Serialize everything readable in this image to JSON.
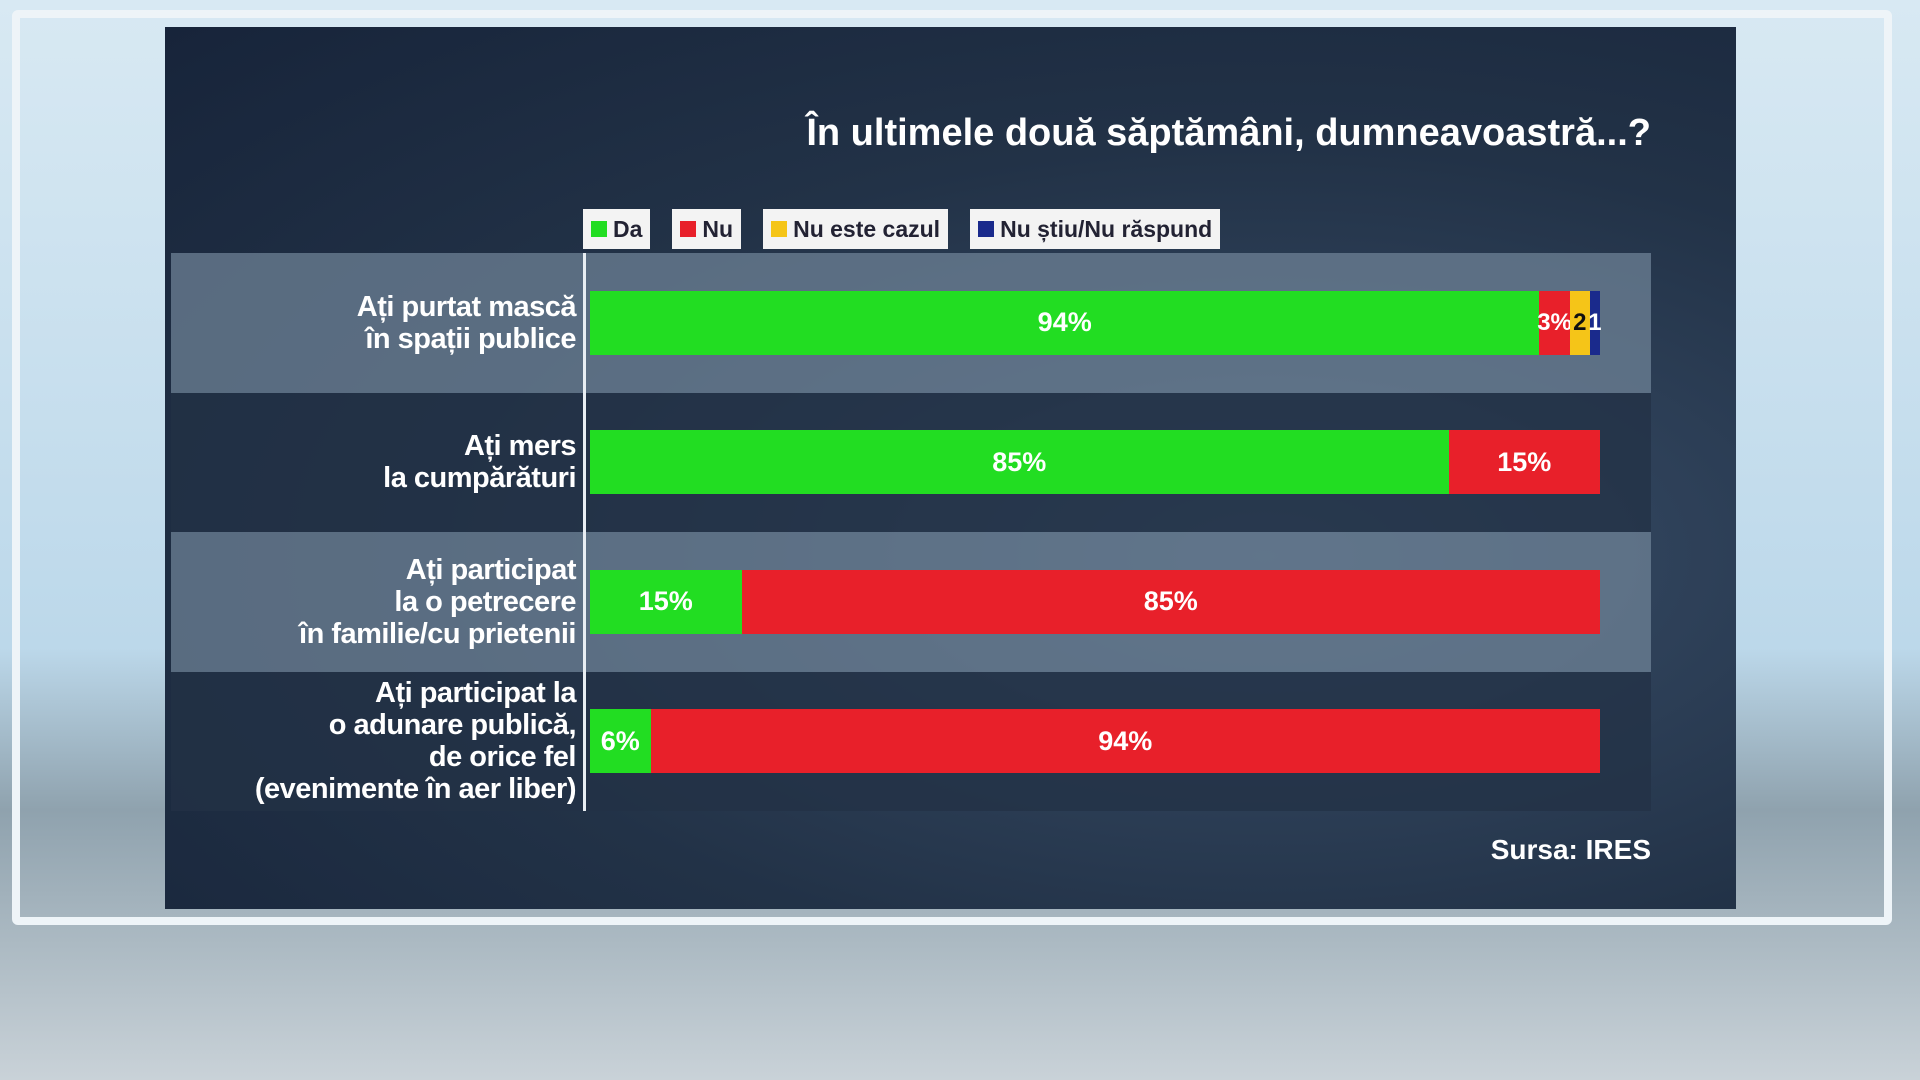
{
  "chart_data": {
    "type": "stacked-bar-horizontal",
    "title": "În ultimele două săptămâni, dumneavoastră...?",
    "categories": [
      "Ați purtat mască\nîn spații publice",
      "Ați mers\nla cumpărături",
      "Ați participat\nla o petrecere\nîn familie/cu prietenii",
      "Ați participat la\no adunare publică,\nde orice fel\n(evenimente în aer liber)"
    ],
    "xlim": [
      0,
      100
    ],
    "series": [
      {
        "name": "Da",
        "color": "#22dd22",
        "values": [
          94,
          85,
          15,
          6
        ],
        "value_labels": [
          "94%",
          "85%",
          "15%",
          "6%"
        ]
      },
      {
        "name": "Nu",
        "color": "#e8202a",
        "values": [
          3,
          15,
          85,
          94
        ],
        "value_labels": [
          "3%",
          "15%",
          "85%",
          "94%"
        ]
      },
      {
        "name": "Nu este cazul",
        "color": "#f5c518",
        "values": [
          2,
          null,
          null,
          null
        ]
      },
      {
        "name": "Nu știu/Nu răspund",
        "color": "#1a2a8c",
        "values": [
          1,
          null,
          null,
          null
        ]
      }
    ],
    "legend": "top",
    "source": "Sursa: IRES"
  }
}
